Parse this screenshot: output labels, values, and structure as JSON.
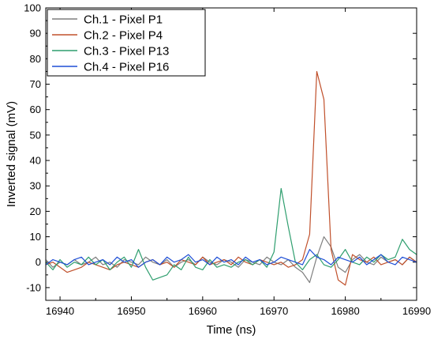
{
  "chart_data": {
    "type": "line",
    "title": "",
    "xlabel": "Time (ns)",
    "ylabel": "Inverted signal (mV)",
    "xlim": [
      16938,
      16990
    ],
    "ylim": [
      -15,
      100
    ],
    "xticks": [
      16940,
      16950,
      16960,
      16970,
      16980,
      16990
    ],
    "yticks": [
      -10,
      0,
      10,
      20,
      30,
      40,
      50,
      60,
      70,
      80,
      90,
      100
    ],
    "grid": false,
    "legend_position": "top-left",
    "x": [
      16938,
      16939,
      16940,
      16941,
      16942,
      16943,
      16944,
      16945,
      16946,
      16947,
      16948,
      16949,
      16950,
      16951,
      16952,
      16953,
      16954,
      16955,
      16956,
      16957,
      16958,
      16959,
      16960,
      16961,
      16962,
      16963,
      16964,
      16965,
      16966,
      16967,
      16968,
      16969,
      16970,
      16971,
      16972,
      16973,
      16974,
      16975,
      16976,
      16977,
      16978,
      16979,
      16980,
      16981,
      16982,
      16983,
      16984,
      16985,
      16986,
      16987,
      16988,
      16989,
      16990
    ],
    "series": [
      {
        "name": "Ch.1 - Pixel P1",
        "color": "#7f7f7f",
        "values": [
          1,
          -2,
          0,
          -1,
          1,
          -1,
          0,
          2,
          -1,
          0,
          -2,
          1,
          0,
          -1,
          2,
          0,
          -1,
          1,
          -2,
          0,
          1,
          -1,
          2,
          0,
          -1,
          1,
          0,
          -2,
          1,
          0,
          -1,
          2,
          0,
          -1,
          1,
          -2,
          -4,
          -8,
          2,
          10,
          6,
          -2,
          -4,
          1,
          3,
          0,
          -1,
          2,
          0,
          1,
          -1,
          2,
          0
        ]
      },
      {
        "name": "Ch.2 - Pixel P4",
        "color": "#c0502b",
        "values": [
          -1,
          0,
          -2,
          -4,
          -3,
          -2,
          0,
          -1,
          -2,
          -3,
          -1,
          0,
          -1,
          -2,
          0,
          1,
          -1,
          0,
          -2,
          1,
          0,
          -1,
          2,
          -1,
          0,
          1,
          -1,
          2,
          0,
          -1,
          1,
          0,
          -1,
          0,
          -2,
          -1,
          1,
          11,
          75,
          64,
          5,
          -7,
          -9,
          3,
          1,
          0,
          2,
          -1,
          0,
          1,
          -1,
          2,
          0
        ]
      },
      {
        "name": "Ch.3 - Pixel P13",
        "color": "#2e9e6e",
        "values": [
          0,
          -3,
          1,
          -2,
          0,
          -1,
          2,
          -1,
          1,
          -3,
          0,
          2,
          -2,
          5,
          -2,
          -7,
          -6,
          -5,
          -1,
          -3,
          2,
          -2,
          -3,
          1,
          -2,
          -1,
          -2,
          0,
          1,
          -1,
          1,
          -2,
          4,
          29,
          14,
          0,
          -3,
          1,
          3,
          -1,
          -2,
          1,
          5,
          0,
          -1,
          2,
          0,
          3,
          1,
          2,
          9,
          5,
          3
        ]
      },
      {
        "name": "Ch.4 - Pixel P16",
        "color": "#1f4fd6",
        "values": [
          -1,
          1,
          0,
          -1,
          1,
          2,
          -1,
          0,
          1,
          -1,
          2,
          0,
          1,
          -2,
          0,
          1,
          -1,
          2,
          0,
          1,
          3,
          0,
          1,
          -1,
          2,
          0,
          1,
          -1,
          2,
          0,
          1,
          -1,
          0,
          2,
          1,
          0,
          -1,
          5,
          2,
          1,
          -1,
          2,
          1,
          0,
          2,
          -1,
          1,
          3,
          0,
          -1,
          2,
          1,
          0
        ]
      }
    ]
  }
}
